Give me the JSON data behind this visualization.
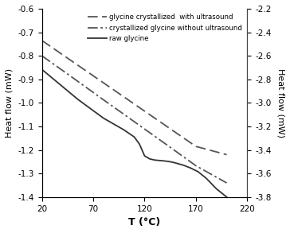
{
  "title": "",
  "xlabel": "T (°C)",
  "ylabel_left": "Heat flow (mW)",
  "ylabel_right": "Heat flow (mW)",
  "xlim": [
    20,
    220
  ],
  "ylim_left": [
    -1.4,
    -0.6
  ],
  "ylim_right": [
    -3.8,
    -2.2
  ],
  "xticks": [
    20,
    70,
    120,
    170,
    220
  ],
  "yticks_left": [
    -1.4,
    -1.3,
    -1.2,
    -1.1,
    -1.0,
    -0.9,
    -0.8,
    -0.7,
    -0.6
  ],
  "yticks_right": [
    -3.8,
    -3.6,
    -3.4,
    -3.2,
    -3.0,
    -2.8,
    -2.6,
    -2.4,
    -2.2
  ],
  "legend": [
    {
      "label": "glycine crystallized  with ultrasound"
    },
    {
      "label": "crystallized glycine without ultrasound"
    },
    {
      "label": "raw glycine"
    }
  ],
  "line_with_us": {
    "x": [
      20,
      50,
      80,
      110,
      140,
      170,
      200
    ],
    "y": [
      -0.735,
      -0.825,
      -0.915,
      -1.005,
      -1.095,
      -1.185,
      -1.22
    ]
  },
  "line_without_us": {
    "x": [
      20,
      50,
      80,
      110,
      140,
      170,
      200
    ],
    "y": [
      -0.8,
      -0.893,
      -0.987,
      -1.08,
      -1.173,
      -1.267,
      -1.34
    ]
  },
  "line_raw": {
    "x": [
      20,
      55,
      80,
      100,
      110,
      115,
      120,
      125,
      130,
      135,
      140,
      145,
      150,
      158,
      165,
      172,
      180,
      190,
      200
    ],
    "y": [
      -0.858,
      -0.985,
      -1.065,
      -1.115,
      -1.145,
      -1.175,
      -1.225,
      -1.238,
      -1.243,
      -1.245,
      -1.247,
      -1.25,
      -1.255,
      -1.265,
      -1.277,
      -1.292,
      -1.32,
      -1.365,
      -1.4
    ]
  },
  "background_color": "#ffffff",
  "line_color": "#555555",
  "line_color_solid": "#333333"
}
